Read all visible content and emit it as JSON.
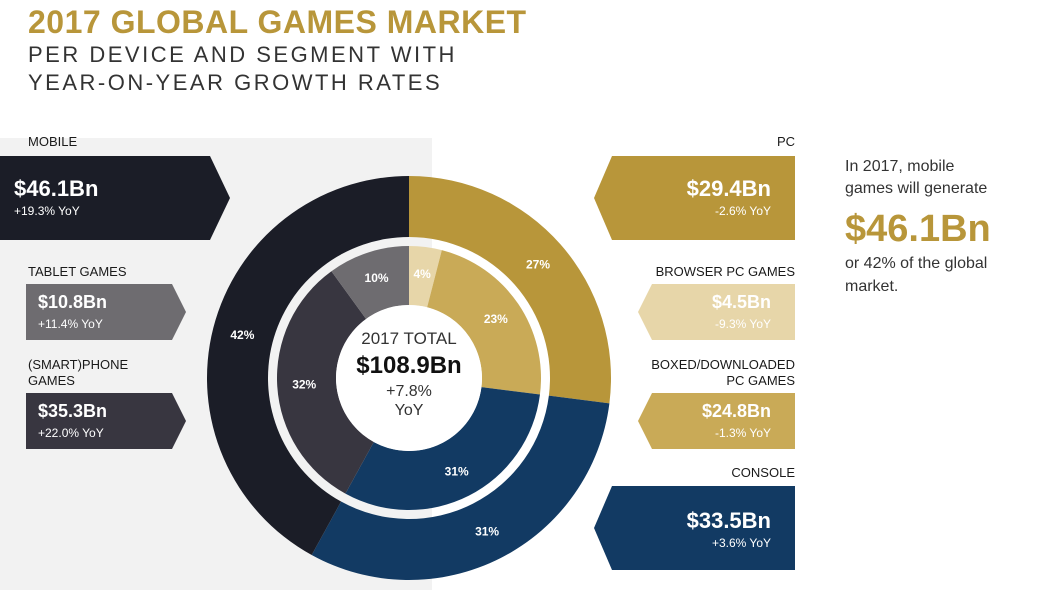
{
  "header": {
    "title": "2017 GLOBAL GAMES MARKET",
    "subtitle_line1": "PER DEVICE AND SEGMENT WITH",
    "subtitle_line2": "YEAR-ON-YEAR GROWTH RATES"
  },
  "left_panels": [
    {
      "category": "MOBILE",
      "value": "$46.1Bn",
      "yoy": "+19.3% YoY",
      "color": "#1b1d27"
    },
    {
      "category": "TABLET GAMES",
      "value": "$10.8Bn",
      "yoy": "+11.4% YoY",
      "color": "#6e6c70"
    },
    {
      "category_line1": "(SMART)PHONE",
      "category_line2": "GAMES",
      "value": "$35.3Bn",
      "yoy": "+22.0% YoY",
      "color": "#383640"
    }
  ],
  "right_panels": [
    {
      "category": "PC",
      "value": "$29.4Bn",
      "yoy": "-2.6% YoY",
      "color": "#b8963a"
    },
    {
      "category": "BROWSER PC GAMES",
      "value": "$4.5Bn",
      "yoy": "-9.3% YoY",
      "color": "#e7d6a9"
    },
    {
      "category_line1": "BOXED/DOWNLOADED",
      "category_line2": "PC GAMES",
      "value": "$24.8Bn",
      "yoy": "-1.3% YoY",
      "color": "#c9aa57"
    },
    {
      "category": "CONSOLE",
      "value": "$33.5Bn",
      "yoy": "+3.6% YoY",
      "color": "#123a63"
    }
  ],
  "center": {
    "label": "2017 TOTAL",
    "value": "$108.9Bn",
    "growth": "+7.8%",
    "growth_unit": "YoY"
  },
  "note": {
    "line1": "In 2017, mobile",
    "line2": "games will generate",
    "big_value": "$46.1Bn",
    "line3": "or 42% of the global",
    "line4": "market."
  },
  "chart_data": {
    "type": "pie",
    "title": "2017 GLOBAL GAMES MARKET",
    "total": "$108.9Bn",
    "outer_ring": [
      {
        "segment": "PC",
        "percent": 27,
        "label": "27%",
        "value_bn": 29.4,
        "color": "#b8963a"
      },
      {
        "segment": "CONSOLE",
        "percent": 31,
        "label": "31%",
        "value_bn": 33.5,
        "color": "#123a63"
      },
      {
        "segment": "MOBILE",
        "percent": 42,
        "label": "42%",
        "value_bn": 46.1,
        "color": "#1b1d27"
      }
    ],
    "inner_ring": [
      {
        "segment": "BROWSER PC GAMES",
        "percent": 4,
        "label": "4%",
        "value_bn": 4.5,
        "color": "#e7d6a9"
      },
      {
        "segment": "BOXED/DOWNLOADED PC GAMES",
        "percent": 23,
        "label": "23%",
        "value_bn": 24.8,
        "color": "#c9aa57"
      },
      {
        "segment": "CONSOLE",
        "percent": 31,
        "label": "31%",
        "value_bn": 33.5,
        "color": "#123a63"
      },
      {
        "segment": "(SMART)PHONE GAMES",
        "percent": 32,
        "label": "32%",
        "value_bn": 35.3,
        "color": "#383640"
      },
      {
        "segment": "TABLET GAMES",
        "percent": 10,
        "label": "10%",
        "value_bn": 10.8,
        "color": "#6e6c70"
      }
    ]
  }
}
